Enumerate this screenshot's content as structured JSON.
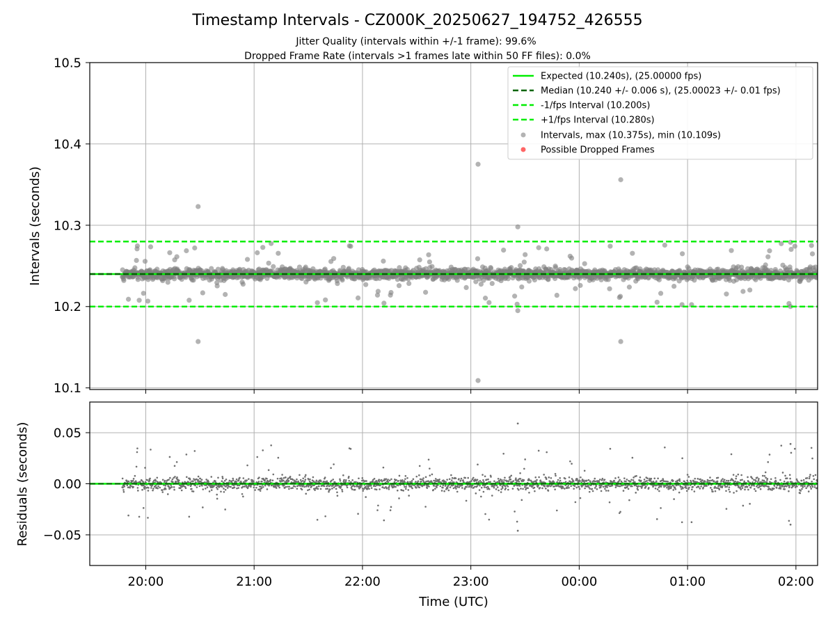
{
  "chart_data": [
    {
      "type": "scatter",
      "title": "Timestamp Intervals - CZ000K_20250627_194752_426555",
      "subtitle_lines": [
        "Jitter Quality (intervals within +/-1 frame): 99.6%",
        "Dropped Frame Rate (intervals >1 frames late within 50 FF files): 0.0%"
      ],
      "ylabel": "Intervals (seconds)",
      "ylim": [
        10.098,
        10.5
      ],
      "yticks": [
        10.1,
        10.2,
        10.3,
        10.4,
        10.5
      ],
      "ytick_labels": [
        "10.1",
        "10.2",
        "10.3",
        "10.4",
        "10.5"
      ],
      "x_axis": "time (UTC), shared with residual panel",
      "grid": true,
      "legend_position": "top-right",
      "legend": [
        "Expected (10.240s), (25.00000 fps)",
        "Median (10.240 +/- 0.006 s), (25.00023 +/- 0.01 fps)",
        "-1/fps Interval (10.200s)",
        "+1/fps Interval (10.280s)",
        "Intervals, max (10.375s), min (10.109s)",
        "Possible Dropped Frames"
      ],
      "lines": {
        "expected": 10.24,
        "median": 10.24,
        "minus_one_frame": 10.2,
        "plus_one_frame": 10.28
      },
      "series_stats": {
        "median": 10.24,
        "std": 0.006,
        "max": 10.375,
        "min": 10.109,
        "interval_between_points_s": 10.24
      },
      "highlighted_outliers": [
        {
          "x": "20:29",
          "y": 10.323
        },
        {
          "x": "20:29",
          "y": 10.157
        },
        {
          "x": "23:04",
          "y": 10.375
        },
        {
          "x": "23:04",
          "y": 10.109
        },
        {
          "x": "23:26",
          "y": 10.298
        },
        {
          "x": "23:26",
          "y": 10.195
        },
        {
          "x": "00:23",
          "y": 10.356
        },
        {
          "x": "00:23",
          "y": 10.157
        },
        {
          "x": "01:57",
          "y": 10.279
        },
        {
          "x": "01:57",
          "y": 10.2
        }
      ],
      "colors": {
        "expected": "#00ee00",
        "median": "#006400",
        "interval_bounds": "#00ee00",
        "points": "#808080",
        "dropped": "#ff0000"
      }
    },
    {
      "type": "scatter",
      "ylabel": "Residuals (seconds)",
      "xlabel": "Time (UTC)",
      "ylim": [
        -0.08,
        0.08
      ],
      "yticks": [
        0.05,
        0.0,
        -0.05
      ],
      "ytick_labels": [
        "0.05",
        "0.00",
        "−0.05"
      ],
      "x_start": "19:47",
      "x_end": "02:12",
      "xlim": [
        "19:29",
        "02:12"
      ],
      "xticks": [
        "20:00",
        "21:00",
        "22:00",
        "23:00",
        "00:00",
        "01:00",
        "02:00"
      ],
      "grid": true,
      "zero_line": 0.0,
      "highlighted_outliers": [
        {
          "x": "23:26",
          "y": 0.059
        },
        {
          "x": "23:26",
          "y": -0.046
        },
        {
          "x": "01:57",
          "y": 0.039
        },
        {
          "x": "01:57",
          "y": -0.04
        }
      ],
      "colors": {
        "points": "#808080",
        "zero_line": "#00ee00"
      }
    }
  ]
}
